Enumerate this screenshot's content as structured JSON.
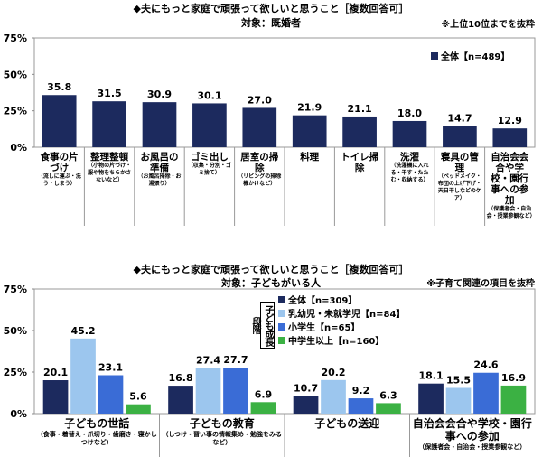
{
  "chart_data": [
    {
      "type": "bar",
      "title": "◆夫にもっと家庭で頑張って欲しいと思うこと［複数回答可］",
      "subtitle": "対象：既婚者",
      "note": "※上位10位までを抜粋",
      "ylim": [
        0,
        75
      ],
      "yticks": [
        "0%",
        "25%",
        "50%",
        "75%"
      ],
      "grid": false,
      "legend_placement": "top-right",
      "categories": [
        {
          "main": "食事の片づけ",
          "sub": "（流しに運ぶ・洗う・しまう）"
        },
        {
          "main": "整理整頓",
          "sub": "（小物の片づけ・服や物をちらかさないなど）"
        },
        {
          "main": "お風呂の準備",
          "sub": "（お風呂掃除・お湯張り）"
        },
        {
          "main": "ゴミ出し",
          "sub": "（収集・分別・ゴミ捨て）"
        },
        {
          "main": "居室の掃除",
          "sub": "（リビングの掃除機かけなど）"
        },
        {
          "main": "料理",
          "sub": ""
        },
        {
          "main": "トイレ掃除",
          "sub": ""
        },
        {
          "main": "洗濯",
          "sub": "（洗濯機に入れる・干す・たたむ・収納する）"
        },
        {
          "main": "寝具の管理",
          "sub": "（ベッドメイク・布団の上げ下げ・天日干しなどのケア）"
        },
        {
          "main": "自治会会合や学校・園行事への参加",
          "sub": "（保護者会・自治会・授業参観など）"
        }
      ],
      "series": [
        {
          "name": "全体【n=489】",
          "color": "#1c2a5e",
          "values": [
            35.8,
            31.5,
            30.9,
            30.1,
            27.0,
            21.9,
            21.1,
            18.0,
            14.7,
            12.9
          ]
        }
      ]
    },
    {
      "type": "bar",
      "title": "◆夫にもっと家庭で頑張って欲しいと思うこと［複数回答可］",
      "subtitle": "対象：子どもがいる人",
      "note": "※子育て関連の項目を抜粋",
      "ylim": [
        0,
        75
      ],
      "yticks": [
        "0%",
        "25%",
        "50%",
        "75%"
      ],
      "grid": false,
      "legend_placement": "top-center",
      "legend_group_label": "子ども成長段階",
      "categories": [
        {
          "main": "子どもの世話",
          "sub": "（食事・着替え・爪切り・歯磨き・寝かしつけなど）"
        },
        {
          "main": "子どもの教育",
          "sub": "（しつけ・習い事の情報集め・勉強をみるなど）"
        },
        {
          "main": "子どもの送迎",
          "sub": ""
        },
        {
          "main": "自治会会合や学校・園行事への参加",
          "sub": "（保護者会・自治会・授業参観など）"
        }
      ],
      "series": [
        {
          "name": "全体【n=309】",
          "color": "#1c2a5e",
          "values": [
            20.1,
            16.8,
            10.7,
            18.1
          ]
        },
        {
          "name": "乳幼児・未就学児【n=84】",
          "color": "#9cc6ee",
          "values": [
            45.2,
            27.4,
            20.2,
            15.5
          ]
        },
        {
          "name": "小学生【n=65】",
          "color": "#3a6cd6",
          "values": [
            23.1,
            27.7,
            9.2,
            24.6
          ]
        },
        {
          "name": "中学生以上【n=160】",
          "color": "#3bb143",
          "values": [
            5.6,
            6.9,
            6.3,
            16.9
          ]
        }
      ]
    }
  ]
}
